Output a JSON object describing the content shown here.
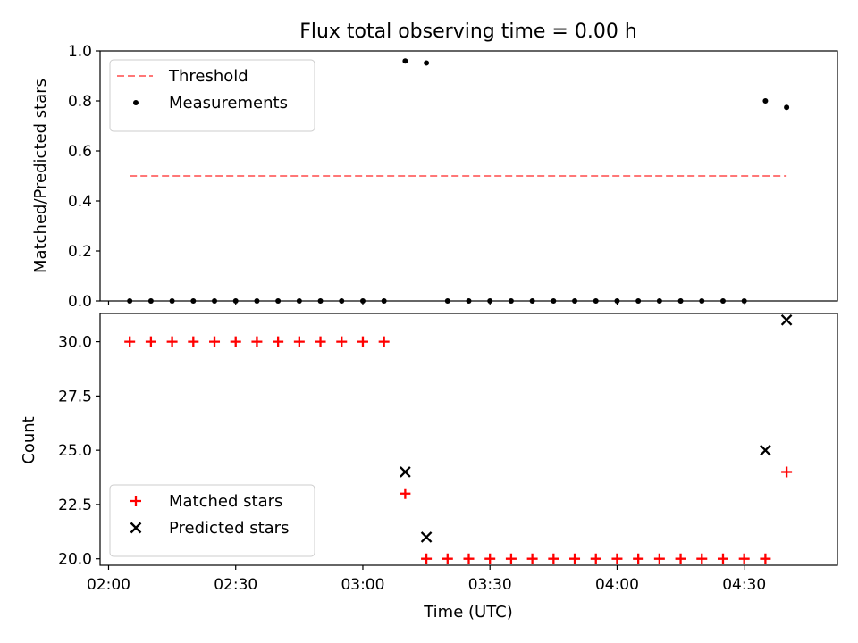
{
  "chart_data": {
    "title": "Flux total observing time = 0.00 h",
    "x_axis": {
      "label": "Time (UTC)",
      "range": [
        "01:58",
        "04:52"
      ],
      "ticks": [
        "02:00",
        "02:30",
        "03:00",
        "03:30",
        "04:00",
        "04:30"
      ]
    },
    "panels": [
      {
        "type": "scatter",
        "ylabel": "Matched/Predicted stars",
        "ylim": [
          0,
          1
        ],
        "yticks": [
          "0.0",
          "0.2",
          "0.4",
          "0.6",
          "0.8",
          "1.0"
        ],
        "legend_position": "top-left",
        "threshold": {
          "name": "Threshold",
          "value": 0.5,
          "x_start": "02:05",
          "x_end": "04:40",
          "color": "#ff7777"
        },
        "series": [
          {
            "name": "Measurements",
            "color": "#000000",
            "x": [
              "02:05",
              "02:10",
              "02:15",
              "02:20",
              "02:25",
              "02:30",
              "02:35",
              "02:40",
              "02:45",
              "02:50",
              "02:55",
              "03:00",
              "03:05",
              "03:10",
              "03:15",
              "03:20",
              "03:25",
              "03:30",
              "03:35",
              "03:40",
              "03:45",
              "03:50",
              "03:55",
              "04:00",
              "04:05",
              "04:10",
              "04:15",
              "04:20",
              "04:25",
              "04:30",
              "04:35",
              "04:40"
            ],
            "y": [
              0,
              0,
              0,
              0,
              0,
              0,
              0,
              0,
              0,
              0,
              0,
              0,
              0,
              0.96,
              0.952,
              0,
              0,
              0,
              0,
              0,
              0,
              0,
              0,
              0,
              0,
              0,
              0,
              0,
              0,
              0,
              0.8,
              0.774
            ]
          }
        ]
      },
      {
        "type": "scatter",
        "ylabel": "Count",
        "ylim": [
          19.7,
          31.3
        ],
        "yticks": [
          "20.0",
          "22.5",
          "25.0",
          "27.5",
          "30.0"
        ],
        "legend_position": "bottom-left",
        "series": [
          {
            "name": "Matched stars",
            "marker": "+",
            "color": "#ff0000",
            "x": [
              "02:05",
              "02:10",
              "02:15",
              "02:20",
              "02:25",
              "02:30",
              "02:35",
              "02:40",
              "02:45",
              "02:50",
              "02:55",
              "03:00",
              "03:05",
              "03:10",
              "03:15",
              "03:20",
              "03:25",
              "03:30",
              "03:35",
              "03:40",
              "03:45",
              "03:50",
              "03:55",
              "04:00",
              "04:05",
              "04:10",
              "04:15",
              "04:20",
              "04:25",
              "04:30",
              "04:35",
              "04:40"
            ],
            "y": [
              30,
              30,
              30,
              30,
              30,
              30,
              30,
              30,
              30,
              30,
              30,
              30,
              30,
              23,
              20,
              20,
              20,
              20,
              20,
              20,
              20,
              20,
              20,
              20,
              20,
              20,
              20,
              20,
              20,
              20,
              20,
              24
            ]
          },
          {
            "name": "Predicted stars",
            "marker": "x",
            "color": "#000000",
            "x": [
              "02:05",
              "02:10",
              "02:15",
              "02:20",
              "02:25",
              "02:30",
              "02:35",
              "02:40",
              "02:45",
              "02:50",
              "02:55",
              "03:00",
              "03:05",
              "03:10",
              "03:15",
              "03:20",
              "03:25",
              "03:30",
              "03:35",
              "03:40",
              "03:45",
              "03:50",
              "03:55",
              "04:00",
              "04:05",
              "04:10",
              "04:15",
              "04:20",
              "04:25",
              "04:30",
              "04:35",
              "04:40"
            ],
            "y": [
              null,
              null,
              null,
              null,
              null,
              null,
              null,
              null,
              null,
              null,
              null,
              null,
              null,
              24,
              21,
              null,
              null,
              null,
              null,
              null,
              null,
              null,
              null,
              null,
              null,
              null,
              null,
              null,
              null,
              null,
              25,
              31
            ]
          }
        ]
      }
    ]
  }
}
